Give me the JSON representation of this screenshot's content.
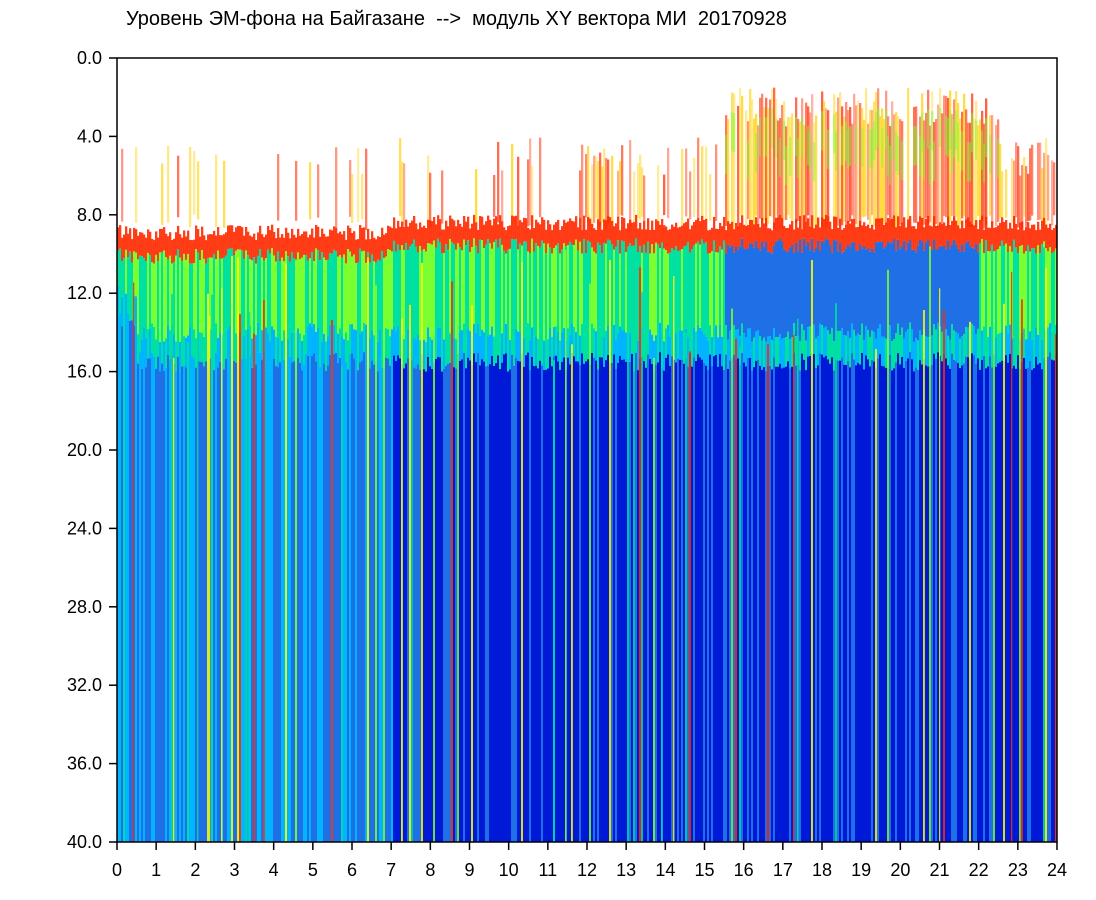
{
  "chart_data": {
    "type": "heatmap",
    "title": "Уровень ЭМ-фона на Байгазане  -->  модуль XY вектора МИ  20170928",
    "x_ticks": [
      "0",
      "1",
      "2",
      "3",
      "4",
      "5",
      "6",
      "7",
      "8",
      "9",
      "10",
      "11",
      "12",
      "13",
      "14",
      "15",
      "16",
      "17",
      "18",
      "19",
      "20",
      "21",
      "22",
      "23",
      "24"
    ],
    "y_ticks": [
      "0.0",
      "4.0",
      "8.0",
      "12.0",
      "16.0",
      "20.0",
      "24.0",
      "28.0",
      "32.0",
      "36.0",
      "40.0"
    ],
    "xlim": [
      0,
      24
    ],
    "ylim": [
      40,
      0
    ],
    "y_inverted": true,
    "colormap": [
      "#0019d6",
      "#1f6fe6",
      "#00b4ff",
      "#00e0a0",
      "#7cff30",
      "#ffff00",
      "#ff2a00"
    ],
    "background_color": "#ffffff",
    "grid": false
  }
}
